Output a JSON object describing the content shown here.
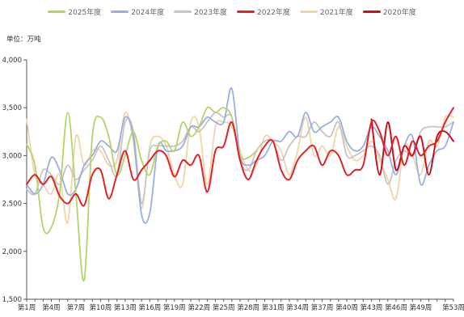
{
  "chart_data": {
    "type": "line",
    "unit_label": "单位：万吨",
    "ylim": [
      1500,
      4000
    ],
    "yticks": [
      1500,
      2000,
      2500,
      3000,
      3500,
      4000
    ],
    "ytick_labels": [
      "1,500",
      "2,000",
      "2,500",
      "3,000",
      "3,500",
      "4,000"
    ],
    "x": [
      "第1周",
      "第2周",
      "第3周",
      "第4周",
      "第5周",
      "第6周",
      "第7周",
      "第8周",
      "第9周",
      "第10周",
      "第11周",
      "第12周",
      "第13周",
      "第14周",
      "第15周",
      "第16周",
      "第17周",
      "第18周",
      "第19周",
      "第20周",
      "第21周",
      "第22周",
      "第23周",
      "第24周",
      "第25周",
      "第26周",
      "第27周",
      "第28周",
      "第29周",
      "第30周",
      "第31周",
      "第32周",
      "第33周",
      "第34周",
      "第35周",
      "第36周",
      "第37周",
      "第38周",
      "第39周",
      "第40周",
      "第41周",
      "第42周",
      "第43周",
      "第44周",
      "第45周",
      "第46周",
      "第47周",
      "第48周",
      "第49周",
      "第50周",
      "第51周",
      "第52周",
      "第53周"
    ],
    "xtick_labels": [
      "第1周",
      "第4周",
      "第7周",
      "第10周",
      "第13周",
      "第16周",
      "第19周",
      "第22周",
      "第25周",
      "第28周",
      "第31周",
      "第34周",
      "第37周",
      "第40周",
      "第43周",
      "第46周",
      "第49周",
      "第53周"
    ],
    "legend_position": "top-center",
    "grid": false,
    "series": [
      {
        "name": "2025年度",
        "color": "#b4d46a",
        "values": [
          3120,
          2900,
          2250,
          2250,
          2600,
          3450,
          2600,
          1700,
          3200,
          3400,
          3200,
          2800,
          3000,
          3250,
          2950,
          2800,
          3100,
          3150,
          3050,
          3350,
          3200,
          3300,
          3500,
          3450,
          3500,
          3400,
          3000,
          2980,
          3050,
          null,
          null,
          null,
          null,
          null,
          null,
          null,
          null,
          null,
          null,
          null,
          null,
          null,
          null,
          null,
          null,
          null,
          null,
          null,
          null,
          null,
          null,
          null,
          null
        ]
      },
      {
        "name": "2024年度",
        "color": "#9aaee2",
        "values": [
          2700,
          2600,
          2700,
          2980,
          2850,
          2600,
          2650,
          2900,
          3000,
          3150,
          3100,
          3050,
          3400,
          3200,
          2380,
          2400,
          3100,
          3050,
          3050,
          3100,
          3300,
          3300,
          3400,
          3350,
          3350,
          3700,
          3000,
          2900,
          2950,
          3000,
          3150,
          3150,
          3250,
          3200,
          3450,
          3250,
          3300,
          3350,
          3400,
          3150,
          3050,
          3100,
          3300,
          3200,
          3050,
          2800,
          3100,
          3200,
          2700,
          2900,
          3050,
          3100,
          3350
        ]
      },
      {
        "name": "2023年度",
        "color": "#c6c6c6",
        "values": [
          2650,
          2600,
          2850,
          2800,
          2700,
          2900,
          2750,
          2850,
          2950,
          3100,
          2950,
          2800,
          3350,
          3250,
          2500,
          3050,
          3100,
          3100,
          3100,
          3150,
          3300,
          3250,
          3350,
          3450,
          3400,
          3400,
          2950,
          2850,
          3050,
          3150,
          3150,
          2950,
          3100,
          3200,
          3200,
          3350,
          3250,
          3200,
          3350,
          3000,
          3000,
          3050,
          3100,
          3000,
          2700,
          2950,
          3050,
          3000,
          3250,
          3300,
          3300,
          3300,
          3350
        ]
      },
      {
        "name": "2022年度",
        "color": "#e12326",
        "values": [
          2700,
          2800,
          2700,
          2780,
          2580,
          2500,
          2600,
          2480,
          2800,
          2850,
          2550,
          2800,
          3050,
          2750,
          2850,
          2950,
          3050,
          3000,
          2780,
          2950,
          2900,
          3000,
          2620,
          3050,
          3100,
          3350,
          2950,
          2750,
          2950,
          3100,
          3150,
          2850,
          2750,
          2950,
          3050,
          3100,
          2900,
          3050,
          3000,
          2800,
          2850,
          2900,
          3350,
          3250,
          3000,
          3200,
          2900,
          3150,
          3000,
          3100,
          3150,
          3350,
          3500
        ]
      },
      {
        "name": "2021年度",
        "color": "#f0d5a8",
        "values": [
          3380,
          2800,
          2700,
          2600,
          2800,
          2300,
          3200,
          2900,
          3050,
          3050,
          2900,
          2950,
          3450,
          3150,
          2450,
          3100,
          3200,
          3100,
          2800,
          2700,
          3350,
          3300,
          2700,
          3300,
          3350,
          3300,
          3050,
          2850,
          2900,
          3200,
          3150,
          3050,
          2800,
          3050,
          3400,
          3000,
          3100,
          3000,
          3300,
          3100,
          2950,
          3000,
          3150,
          2950,
          2750,
          2550,
          3100,
          3000,
          2800,
          3150,
          3100,
          3400,
          3400
        ]
      },
      {
        "name": "2020年度",
        "color": "#c8101a",
        "values": [
          null,
          null,
          null,
          null,
          null,
          null,
          null,
          null,
          null,
          null,
          null,
          null,
          null,
          null,
          null,
          null,
          null,
          null,
          null,
          null,
          null,
          null,
          null,
          null,
          null,
          null,
          null,
          null,
          null,
          null,
          null,
          null,
          null,
          null,
          null,
          null,
          null,
          null,
          null,
          null,
          null,
          null,
          3380,
          2800,
          3350,
          2850,
          3100,
          3000,
          3200,
          2800,
          3200,
          3250,
          3150
        ]
      }
    ]
  }
}
